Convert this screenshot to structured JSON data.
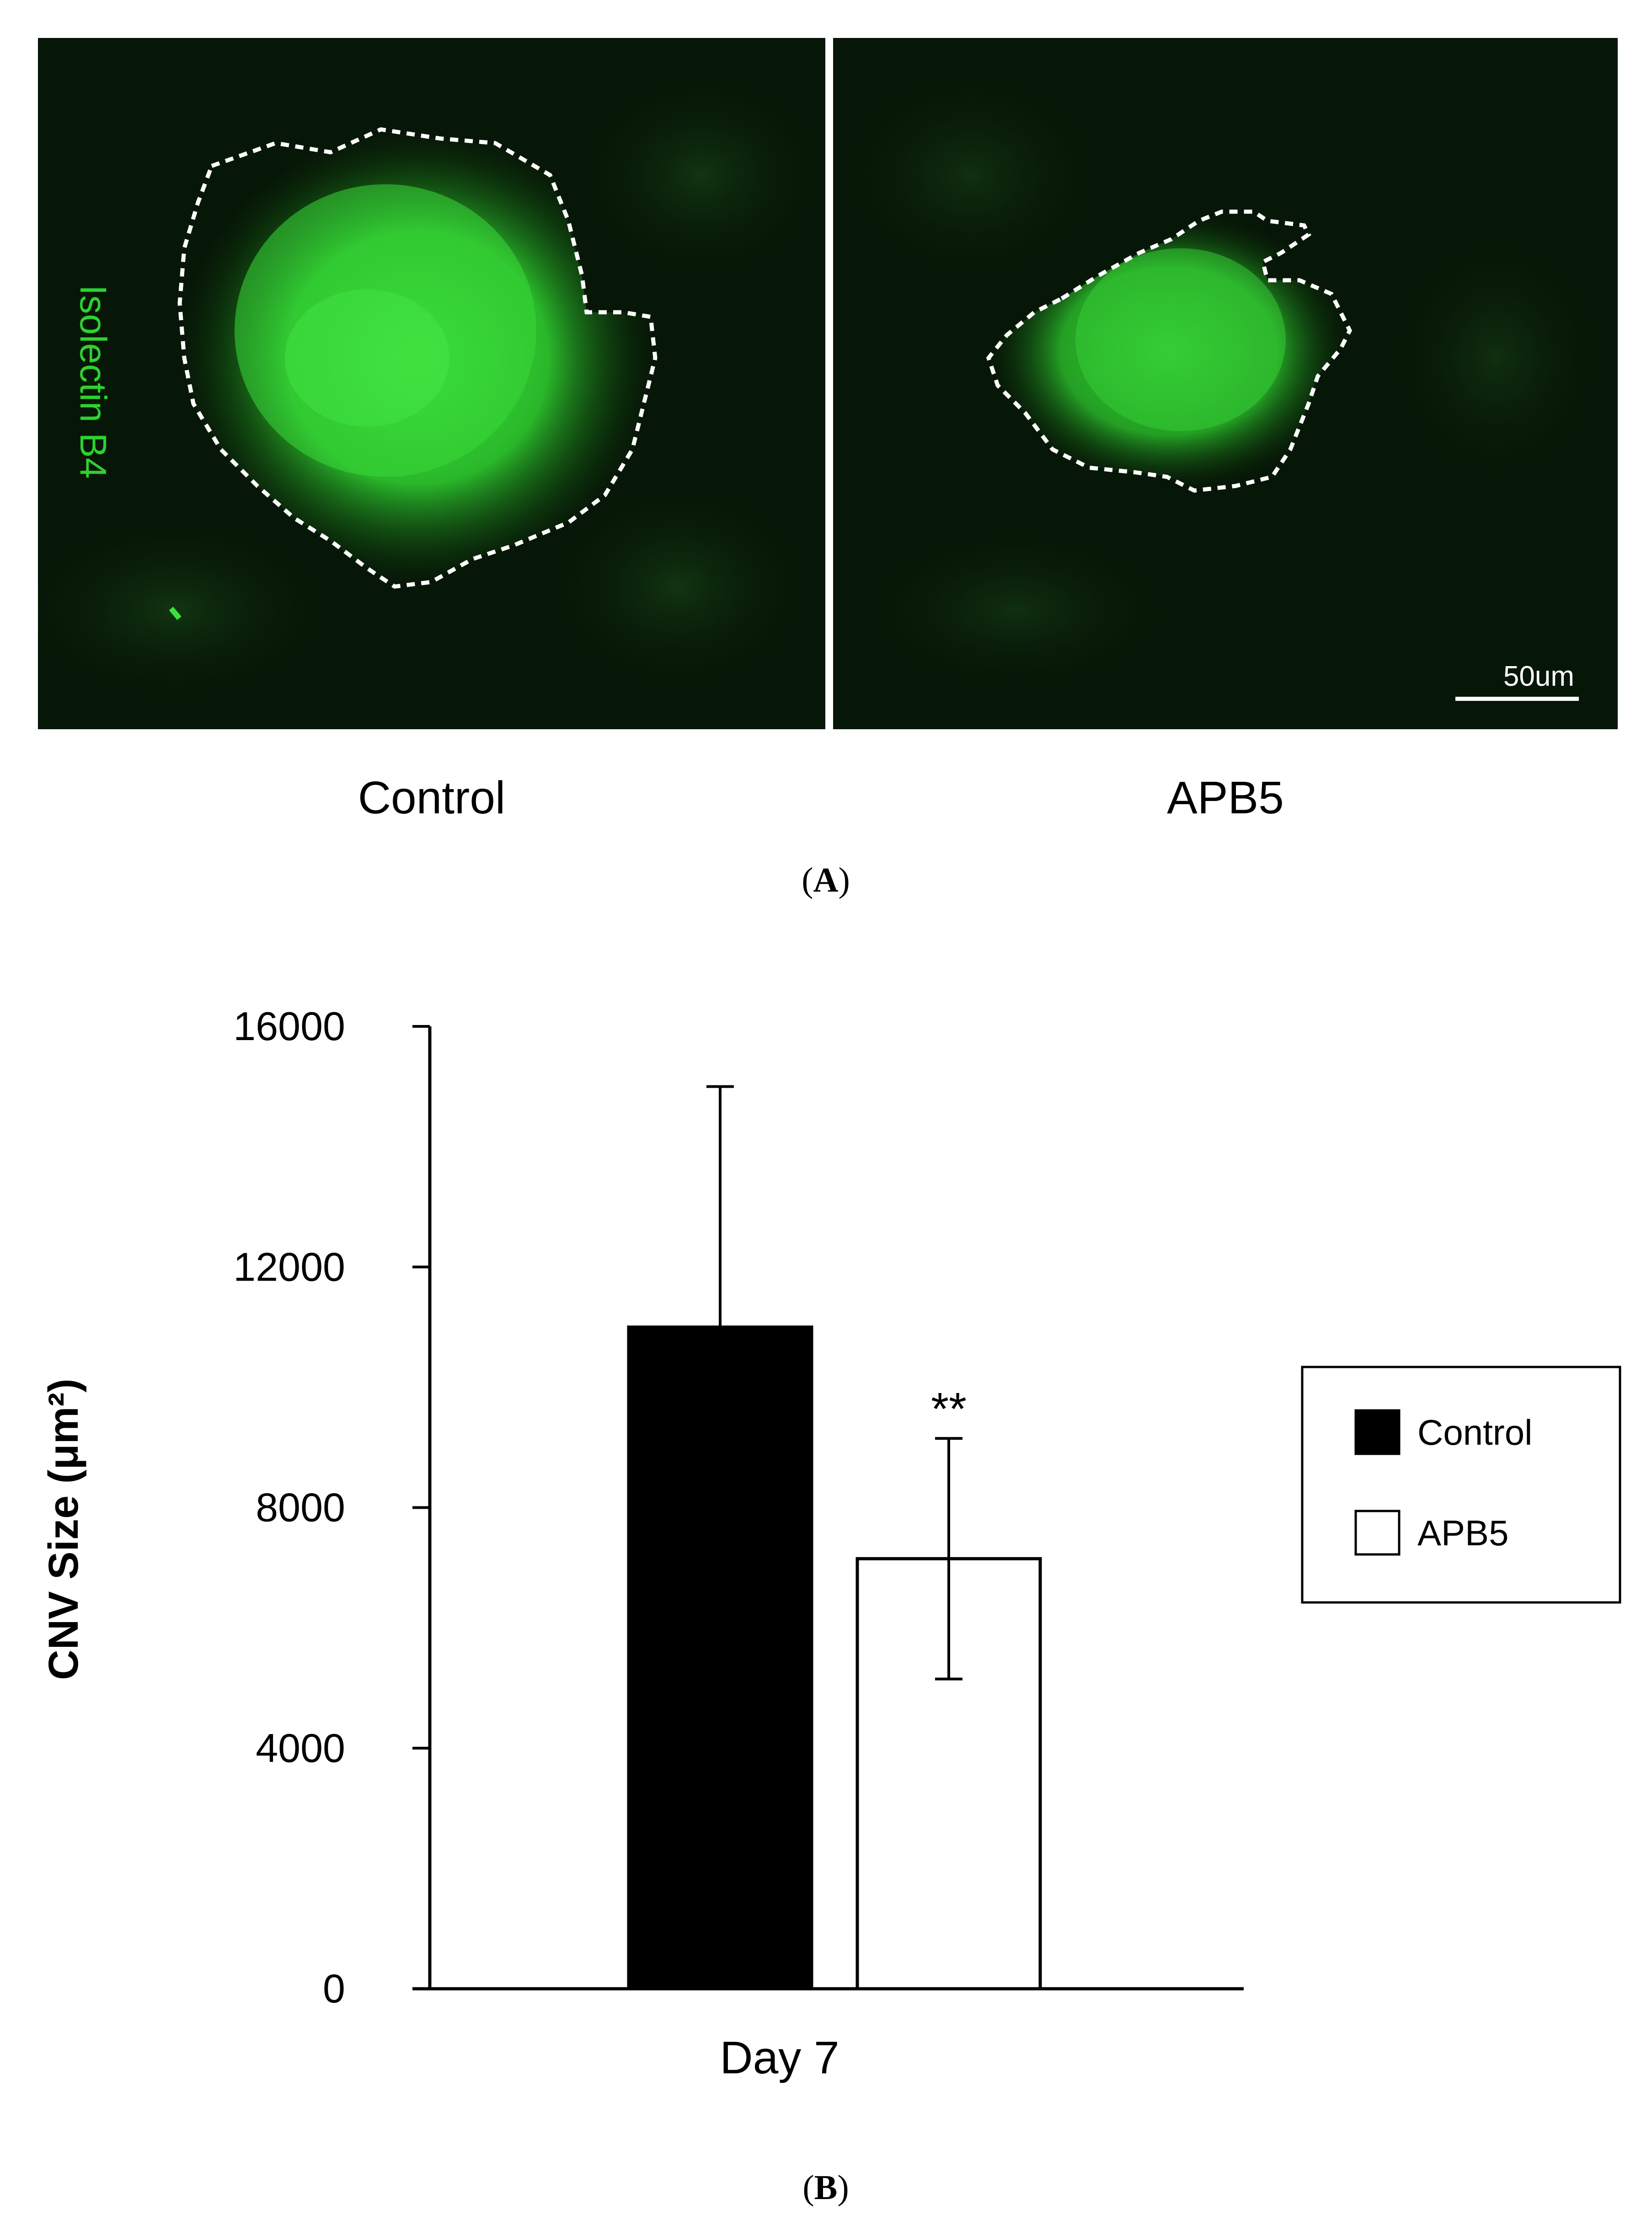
{
  "panel_a": {
    "letter": "A",
    "stain_label": "Isolectin B4",
    "scale_bar_label": "50um",
    "images": [
      {
        "label": "Control"
      },
      {
        "label": "APB5"
      }
    ],
    "colors": {
      "stain": "#2fd12f",
      "background": "#061306",
      "outline": "#ffffff"
    }
  },
  "panel_b": {
    "letter": "B"
  },
  "chart_data": {
    "type": "bar",
    "categories": [
      "Day 7"
    ],
    "series": [
      {
        "name": "Control",
        "values": [
          11000
        ],
        "error": [
          4000
        ],
        "color": "#000000"
      },
      {
        "name": "APB5",
        "values": [
          7150
        ],
        "error": [
          2000
        ],
        "color": "#ffffff",
        "annotation": "**"
      }
    ],
    "ylabel": "CNV Size (μm²)",
    "xlabel": "",
    "ylim": [
      0,
      16000
    ],
    "yticks": [
      0,
      4000,
      8000,
      12000,
      16000
    ],
    "grid": false,
    "legend_position": "right"
  }
}
